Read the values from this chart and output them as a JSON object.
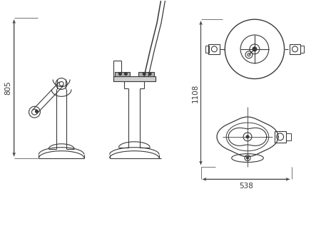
{
  "bg_color": "#ffffff",
  "line_color": "#3a3a3a",
  "dim_color": "#3a3a3a",
  "dim_805": "805",
  "dim_1108": "1108",
  "dim_538": "538",
  "figsize": [
    4.5,
    3.45
  ],
  "dpi": 100
}
